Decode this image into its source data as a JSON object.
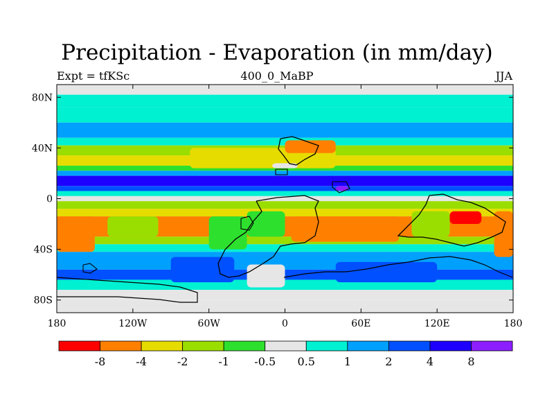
{
  "title": "Precipitation - Evaporation (in mm/day)",
  "subtitle_left": "Expt = tfKSc",
  "subtitle_center": "400_0_MaBP",
  "subtitle_right": "JJA",
  "chart_data": {
    "type": "heatmap",
    "lon_range": [
      -180,
      180
    ],
    "lat_range": [
      -90,
      90
    ],
    "x_ticks": [
      {
        "value": -180,
        "label": "180"
      },
      {
        "value": -120,
        "label": "120W"
      },
      {
        "value": -60,
        "label": "60W"
      },
      {
        "value": 0,
        "label": "0"
      },
      {
        "value": 60,
        "label": "60E"
      },
      {
        "value": 120,
        "label": "120E"
      },
      {
        "value": 180,
        "label": "180"
      }
    ],
    "y_ticks": [
      {
        "value": 80,
        "label": "80N"
      },
      {
        "value": 40,
        "label": "40N"
      },
      {
        "value": 0,
        "label": "0"
      },
      {
        "value": -40,
        "label": "40S"
      },
      {
        "value": -80,
        "label": "80S"
      }
    ],
    "levels": [
      "-8",
      "-4",
      "-2",
      "-1",
      "-0.5",
      "0.5",
      "1",
      "2",
      "4",
      "8"
    ],
    "colors": [
      "#ff0000",
      "#ff8000",
      "#e6dc00",
      "#9ade00",
      "#2ee02e",
      "#e6e6e6",
      "#00f0d2",
      "#00a0ff",
      "#0050ff",
      "#1e00ff",
      "#8c1eff"
    ],
    "zonal_bands": [
      {
        "lat": [
          90,
          82
        ],
        "bin": 5
      },
      {
        "lat": [
          82,
          72
        ],
        "bin": 6
      },
      {
        "lat": [
          72,
          60
        ],
        "bin": 6
      },
      {
        "lat": [
          60,
          48
        ],
        "bin": 7
      },
      {
        "lat": [
          48,
          42
        ],
        "bin": 6
      },
      {
        "lat": [
          42,
          34
        ],
        "bin": 3
      },
      {
        "lat": [
          34,
          26
        ],
        "bin": 2
      },
      {
        "lat": [
          26,
          22
        ],
        "bin": 4
      },
      {
        "lat": [
          22,
          18
        ],
        "bin": 7
      },
      {
        "lat": [
          18,
          10
        ],
        "bin": 9
      },
      {
        "lat": [
          10,
          6
        ],
        "bin": 8
      },
      {
        "lat": [
          6,
          2
        ],
        "bin": 6
      },
      {
        "lat": [
          2,
          -2
        ],
        "bin": 5
      },
      {
        "lat": [
          -2,
          -8
        ],
        "bin": 3
      },
      {
        "lat": [
          -8,
          -14
        ],
        "bin": 2
      },
      {
        "lat": [
          -14,
          -30
        ],
        "bin": 1
      },
      {
        "lat": [
          -30,
          -36
        ],
        "bin": 3
      },
      {
        "lat": [
          -36,
          -42
        ],
        "bin": 6
      },
      {
        "lat": [
          -42,
          -56
        ],
        "bin": 7
      },
      {
        "lat": [
          -56,
          -64
        ],
        "bin": 8
      },
      {
        "lat": [
          -64,
          -72
        ],
        "bin": 6
      },
      {
        "lat": [
          -72,
          -80
        ],
        "bin": 5
      },
      {
        "lat": [
          -80,
          -90
        ],
        "bin": 5
      }
    ],
    "regional_patches": [
      {
        "lon": [
          -75,
          40
        ],
        "lat": [
          40,
          24
        ],
        "bin": 2
      },
      {
        "lon": [
          0,
          40
        ],
        "lat": [
          46,
          36
        ],
        "bin": 1
      },
      {
        "lon": [
          -10,
          10
        ],
        "lat": [
          28,
          24
        ],
        "bin": 5
      },
      {
        "lon": [
          -180,
          -150
        ],
        "lat": [
          -14,
          -42
        ],
        "bin": 1
      },
      {
        "lon": [
          -140,
          -100
        ],
        "lat": [
          -14,
          -30
        ],
        "bin": 3
      },
      {
        "lon": [
          -60,
          -30
        ],
        "lat": [
          -14,
          -40
        ],
        "bin": 4
      },
      {
        "lon": [
          -30,
          0
        ],
        "lat": [
          -10,
          -30
        ],
        "bin": 4
      },
      {
        "lon": [
          5,
          90
        ],
        "lat": [
          -14,
          -34
        ],
        "bin": 1
      },
      {
        "lon": [
          100,
          130
        ],
        "lat": [
          -10,
          -30
        ],
        "bin": 3
      },
      {
        "lon": [
          130,
          155
        ],
        "lat": [
          -10,
          -20
        ],
        "bin": 0
      },
      {
        "lon": [
          165,
          180
        ],
        "lat": [
          -10,
          -46
        ],
        "bin": 1
      },
      {
        "lon": [
          -90,
          -40
        ],
        "lat": [
          -46,
          -66
        ],
        "bin": 8
      },
      {
        "lon": [
          40,
          120
        ],
        "lat": [
          -50,
          -66
        ],
        "bin": 8
      },
      {
        "lon": [
          -30,
          0
        ],
        "lat": [
          -52,
          -70
        ],
        "bin": 5
      },
      {
        "lon": [
          40,
          50
        ],
        "lat": [
          10,
          6
        ],
        "bin": 10
      }
    ]
  }
}
